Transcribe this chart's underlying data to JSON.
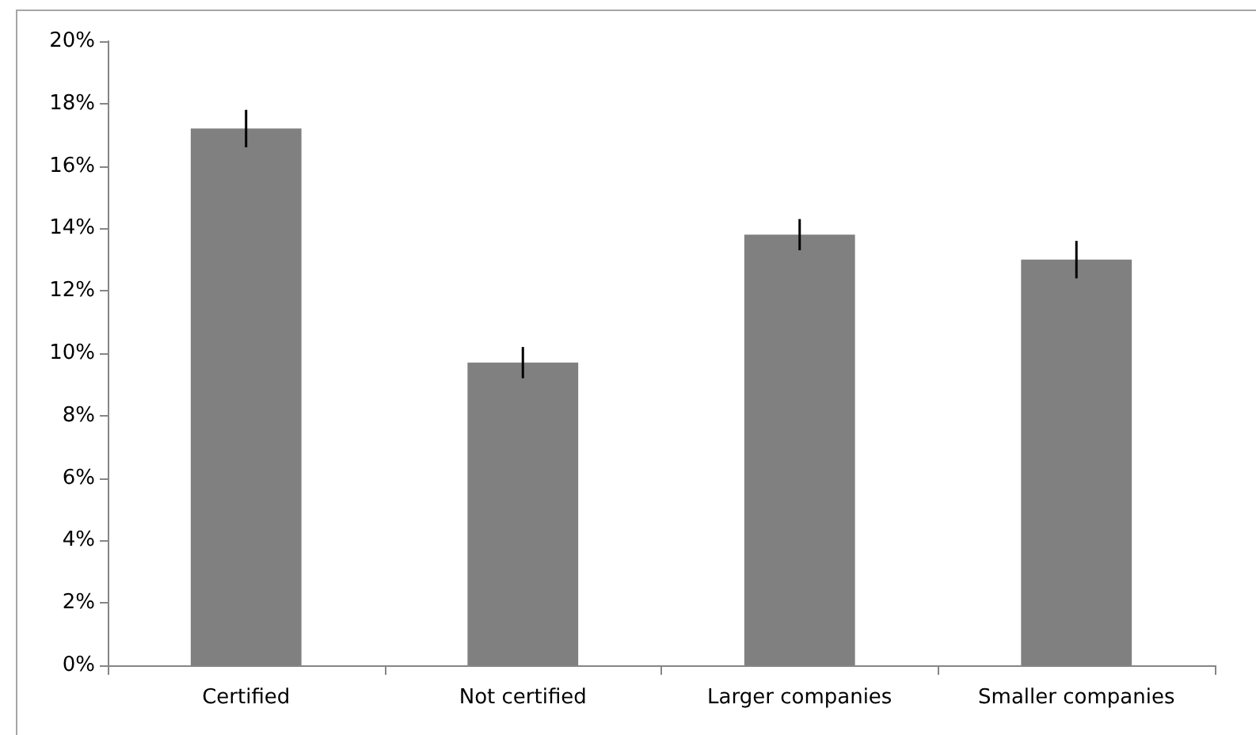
{
  "chart_data": {
    "type": "bar",
    "categories": [
      "Certified",
      "Not certified",
      "Larger companies",
      "Smaller companies"
    ],
    "values": [
      17.2,
      9.7,
      13.8,
      13.0
    ],
    "errors": [
      0.6,
      0.5,
      0.5,
      0.6
    ],
    "color": "#808080",
    "ylim": [
      0,
      20
    ],
    "yticks": [
      {
        "value": 0,
        "label": "0%"
      },
      {
        "value": 2,
        "label": "2%"
      },
      {
        "value": 4,
        "label": "4%"
      },
      {
        "value": 6,
        "label": "6%"
      },
      {
        "value": 8,
        "label": "8%"
      },
      {
        "value": 10,
        "label": "10%"
      },
      {
        "value": 12,
        "label": "12%"
      },
      {
        "value": 14,
        "label": "14%"
      },
      {
        "value": 16,
        "label": "16%"
      },
      {
        "value": 18,
        "label": "18%"
      },
      {
        "value": 20,
        "label": "20%"
      }
    ],
    "grid": false
  }
}
